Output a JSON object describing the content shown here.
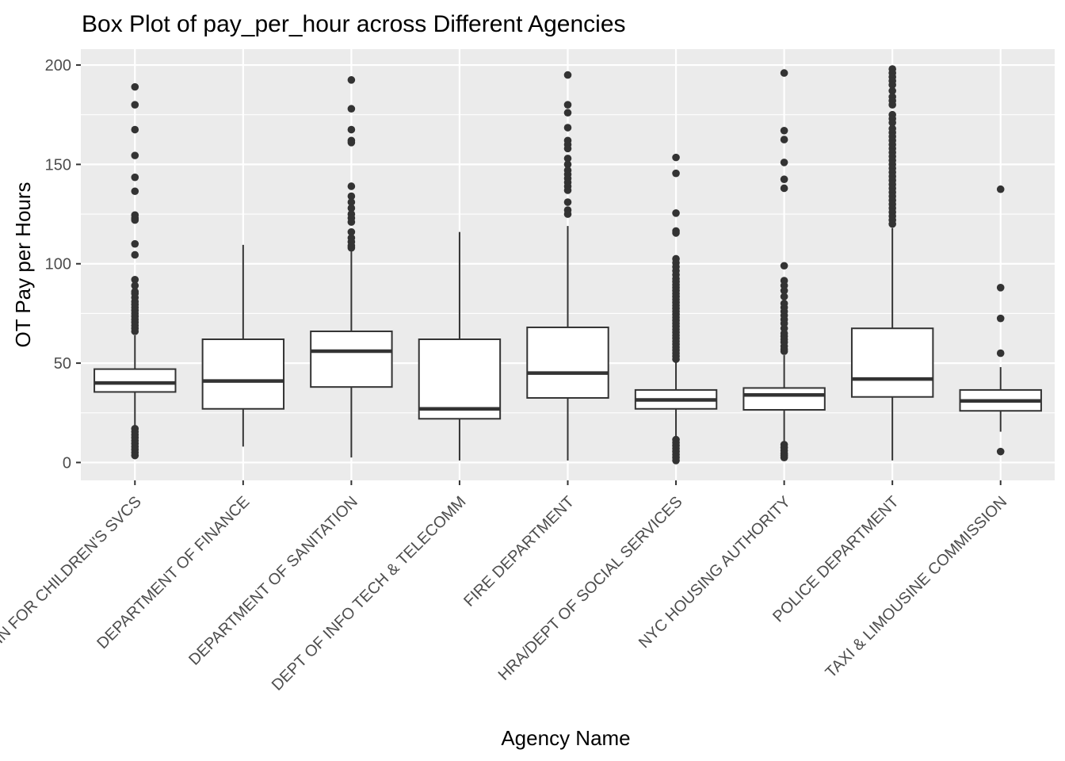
{
  "chart_data": {
    "type": "box",
    "title": "Box Plot of pay_per_hour across Different Agencies",
    "xlabel": "Agency Name",
    "ylabel": "OT Pay per Hours",
    "ylim": [
      -9,
      208
    ],
    "yticks": [
      0,
      50,
      100,
      150,
      200
    ],
    "grid": true,
    "colors": {
      "panel": "#ebebeb",
      "grid": "#ffffff",
      "box_line": "#333333",
      "box_fill": "#ffffff",
      "outlier": "#333333",
      "tick_text": "#4d4d4d"
    },
    "categories": [
      "ADMIN FOR CHILDREN'S SVCS",
      "DEPARTMENT OF FINANCE",
      "DEPARTMENT OF SANITATION",
      "DEPT OF INFO TECH & TELECOMM",
      "FIRE DEPARTMENT",
      "HRA/DEPT OF SOCIAL SERVICES",
      "NYC HOUSING AUTHORITY",
      "POLICE DEPARTMENT",
      "TAXI & LIMOUSINE COMMISSION"
    ],
    "boxes": [
      {
        "whisker_low": 3.5,
        "q1": 35.5,
        "median": 40,
        "q3": 47,
        "whisker_high": 64,
        "outliers": [
          189,
          180,
          167.5,
          154.5,
          143.5,
          136.5,
          124.5,
          123,
          122,
          110,
          104.5,
          92,
          89,
          86,
          85,
          83,
          81,
          79.5,
          78,
          76.5,
          75,
          73.5,
          72,
          70.5,
          69,
          67.5,
          66,
          17,
          15.5,
          14,
          12.5,
          11,
          9.5,
          8,
          6.5,
          5,
          3.5
        ]
      },
      {
        "whisker_low": 8,
        "q1": 27,
        "median": 41,
        "q3": 62,
        "whisker_high": 109.5,
        "outliers": []
      },
      {
        "whisker_low": 2.5,
        "q1": 38,
        "median": 56,
        "q3": 66,
        "whisker_high": 107,
        "outliers": [
          192.5,
          178,
          167.5,
          162,
          161,
          139,
          134,
          131,
          128,
          125,
          123,
          121,
          116,
          113,
          111,
          109,
          108
        ]
      },
      {
        "whisker_low": 1,
        "q1": 22,
        "median": 27,
        "q3": 62,
        "whisker_high": 116,
        "outliers": []
      },
      {
        "whisker_low": 1,
        "q1": 32.5,
        "median": 45,
        "q3": 68,
        "whisker_high": 119,
        "outliers": [
          195,
          180,
          176,
          168.5,
          162,
          160,
          158,
          153,
          150,
          147,
          145,
          143,
          141,
          139,
          137,
          131,
          127,
          125
        ]
      },
      {
        "whisker_low": 13,
        "q1": 27,
        "median": 31.5,
        "q3": 36.5,
        "whisker_high": 50.5,
        "outliers": [
          153.5,
          145.5,
          125.5,
          116.5,
          115.5,
          102.5,
          100.5,
          98.5,
          96.5,
          94.5,
          92.5,
          91,
          89.5,
          88,
          86.5,
          85,
          83.5,
          82,
          80.5,
          79,
          77.5,
          76,
          74.5,
          73,
          71.5,
          70,
          68.5,
          67,
          65.5,
          64,
          62.5,
          61,
          59.5,
          58,
          56.5,
          55,
          53.5,
          52,
          11.5,
          10,
          8.5,
          7,
          5.5,
          4,
          2.5,
          1
        ]
      },
      {
        "whisker_low": 10,
        "q1": 26.5,
        "median": 34,
        "q3": 37.5,
        "whisker_high": 54,
        "outliers": [
          196,
          167,
          162.5,
          151,
          142.5,
          138,
          99,
          91.5,
          89,
          86.5,
          83.5,
          80,
          78,
          76,
          74,
          72,
          70,
          67.5,
          65,
          63.5,
          62,
          60.5,
          58.5,
          57,
          56,
          9,
          7.5,
          6,
          4.5,
          3.5,
          2.5
        ]
      },
      {
        "whisker_low": 1,
        "q1": 33,
        "median": 42,
        "q3": 67.5,
        "whisker_high": 118,
        "outliers": [
          198,
          196,
          194,
          192,
          190,
          187,
          184,
          182,
          180,
          175,
          173,
          171,
          168,
          166,
          164,
          162,
          160,
          158,
          156,
          154,
          152,
          150,
          148,
          146,
          144,
          142,
          140,
          138,
          136,
          134,
          132,
          130,
          128,
          126,
          124,
          122,
          120
        ]
      },
      {
        "whisker_low": 15.5,
        "q1": 26,
        "median": 31,
        "q3": 36.5,
        "whisker_high": 48,
        "outliers": [
          137.5,
          88,
          72.5,
          55,
          5.5
        ]
      }
    ]
  }
}
